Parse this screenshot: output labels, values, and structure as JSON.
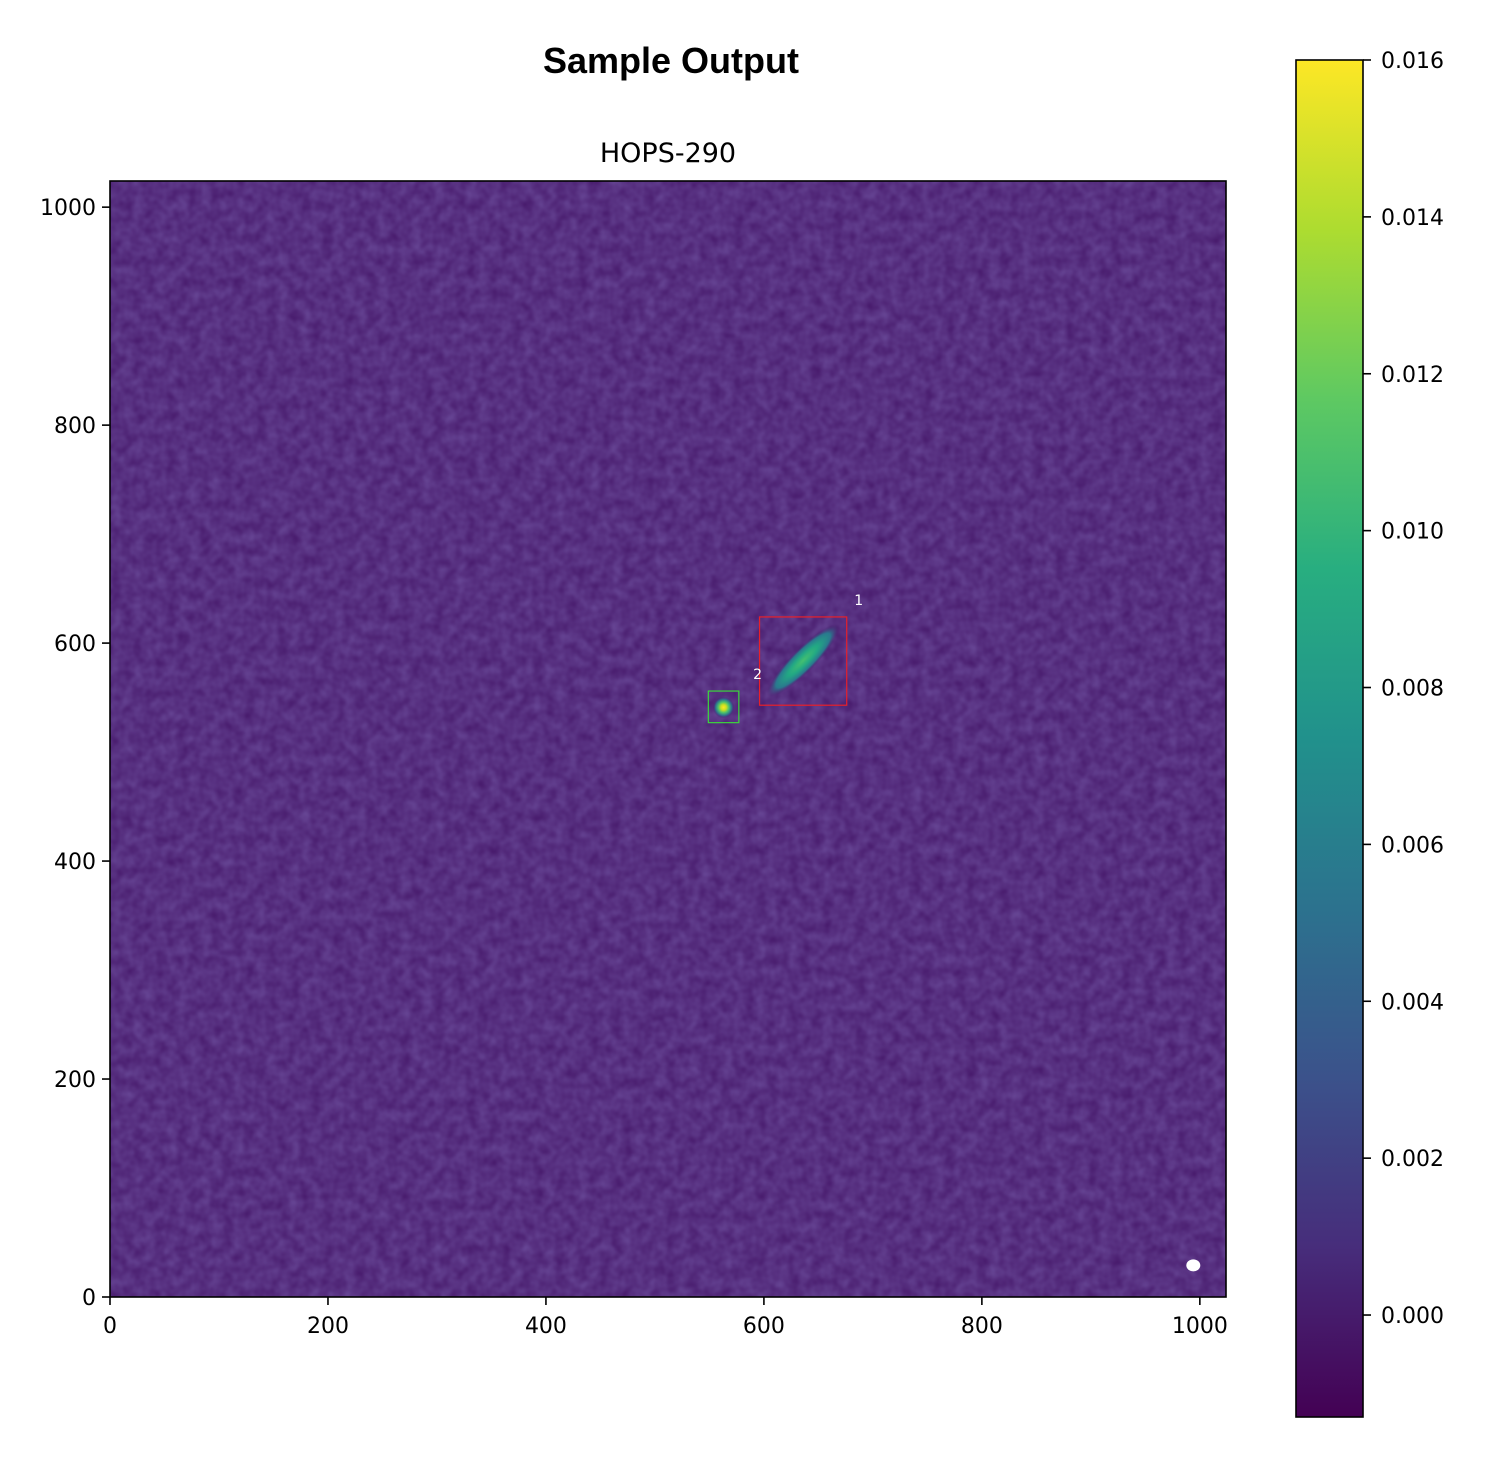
{
  "suptitle": "Sample Output",
  "chart_data": {
    "type": "heatmap",
    "title": "HOPS-290",
    "xlabel": "",
    "ylabel": "",
    "xlim": [
      0,
      1024
    ],
    "ylim": [
      0,
      1024
    ],
    "xticks": [
      0,
      200,
      400,
      600,
      800,
      1000
    ],
    "yticks": [
      0,
      200,
      400,
      600,
      800,
      1000
    ],
    "colormap": "viridis",
    "colorbar": {
      "range": [
        -0.0013,
        0.016
      ],
      "ticks": [
        "0.000",
        "0.002",
        "0.004",
        "0.006",
        "0.008",
        "0.010",
        "0.012",
        "0.014",
        "0.016"
      ],
      "tick_values": [
        0.0,
        0.002,
        0.004,
        0.006,
        0.008,
        0.01,
        0.012,
        0.014,
        0.016
      ]
    },
    "sources": [
      {
        "type": "point",
        "x": 563,
        "y": 541,
        "peak": 0.016
      },
      {
        "type": "elongated",
        "x": 636,
        "y": 584,
        "peak": 0.0095,
        "angle_deg": 45
      }
    ],
    "boxes": [
      {
        "label": "1",
        "x0": 596,
        "y0": 543,
        "x1": 676,
        "y1": 624,
        "color": "#e8202a"
      },
      {
        "label": "2",
        "x0": 549,
        "y0": 527,
        "x1": 577,
        "y1": 556,
        "color": "#3cd63c"
      }
    ],
    "beam": {
      "x": 994,
      "y": 29,
      "color": "#ffffff"
    }
  }
}
